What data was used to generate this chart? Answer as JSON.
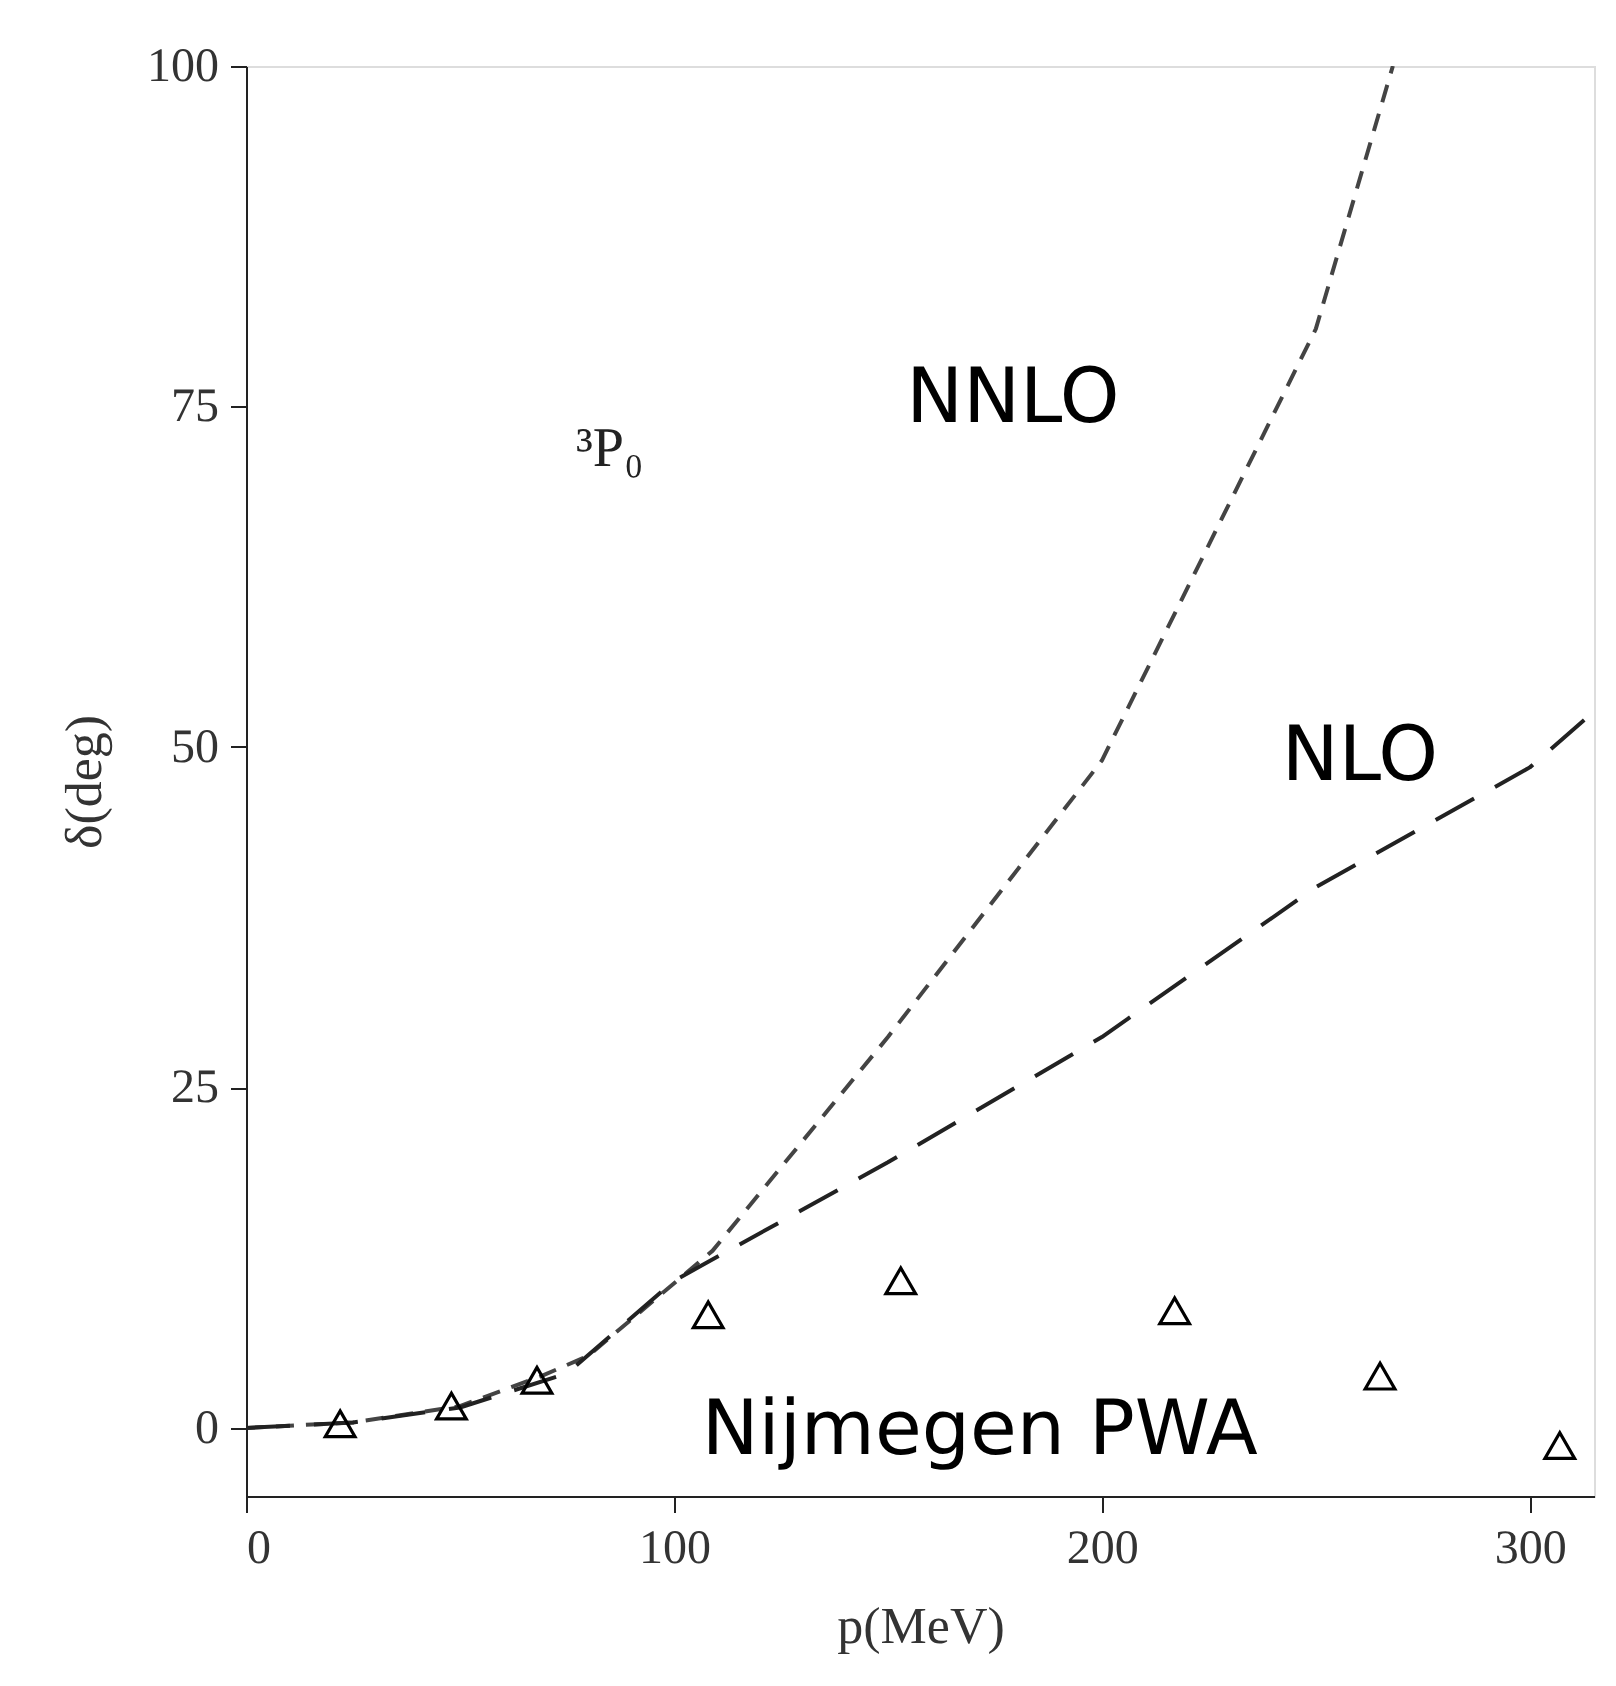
{
  "chart_data": {
    "type": "line",
    "xlabel": "p(MeV)",
    "ylabel": "δ(deg)",
    "xlim": [
      0,
      315
    ],
    "ylim": [
      -5,
      100
    ],
    "xticks": [
      0,
      100,
      200,
      300
    ],
    "yticks": [
      0,
      25,
      50,
      75,
      100
    ],
    "grid": false,
    "annotations": [
      "³P₀"
    ],
    "series": [
      {
        "name": "NNLO",
        "line_style": "dashed",
        "marker": "none",
        "color": "#444444",
        "x": [
          0,
          25,
          50,
          69,
          80,
          109,
          150,
          200,
          250,
          268
        ],
        "values": [
          0,
          0.4,
          1.6,
          3.8,
          5.3,
          13,
          28.7,
          49,
          80.7,
          100
        ]
      },
      {
        "name": "NLO",
        "line_style": "dashed",
        "marker": "none",
        "color": "#222222",
        "x": [
          0,
          25,
          50,
          75,
          100,
          150,
          200,
          250,
          300,
          315
        ],
        "values": [
          0,
          0.4,
          1.5,
          4,
          10.8,
          19.5,
          28.7,
          39.7,
          48.5,
          52.6
        ]
      },
      {
        "name": "Nijmegen PWA",
        "type": "scatter",
        "marker": "triangle",
        "color": "#000000",
        "x": [
          22,
          48,
          68,
          108,
          153,
          217,
          265,
          307
        ],
        "values": [
          0.3,
          1.6,
          3.5,
          8.3,
          10.8,
          8.6,
          3.8,
          -1.3
        ]
      }
    ]
  }
}
